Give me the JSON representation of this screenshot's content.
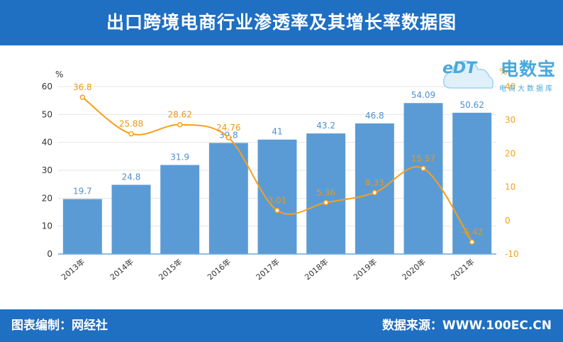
{
  "header": {
    "title": "出口跨境电商行业渗透率及其增长率数据图"
  },
  "footer": {
    "left": "图表编制：网经社",
    "right": "数据来源：WWW.100EC.CN"
  },
  "logo": {
    "mark": "eDT",
    "name": "电数宝",
    "tagline": "电商大数据库"
  },
  "colors": {
    "header_bg": "#1f6fc2",
    "bar": "#5b9bd5",
    "line": "#f5a01a",
    "bar_label": "#4f8fcf",
    "line_label": "#e8971b"
  },
  "chart_data": {
    "type": "bar",
    "categories": [
      "2013年",
      "2014年",
      "2015年",
      "2016年",
      "2017年",
      "2018年",
      "2019年",
      "2020年",
      "2021年"
    ],
    "series": [
      {
        "type": "bar",
        "axis": "left",
        "values": [
          19.7,
          24.8,
          31.9,
          39.8,
          41,
          43.2,
          46.8,
          54.09,
          50.62
        ],
        "labels": [
          "19.7",
          "24.8",
          "31.9",
          "39.8",
          "41",
          "43.2",
          "46.8",
          "54.09",
          "50.62"
        ]
      },
      {
        "type": "line",
        "axis": "right",
        "smooth": true,
        "values": [
          36.8,
          25.88,
          28.62,
          24.76,
          3.01,
          5.36,
          8.33,
          15.57,
          -6.42
        ],
        "labels": [
          "36.8",
          "25.88",
          "28.62",
          "24.76",
          "3.01",
          "5.36",
          "8.33",
          "15.57",
          "-6.42"
        ]
      }
    ],
    "left_axis": {
      "unit": "%",
      "ylim": [
        0,
        60
      ],
      "ticks": [
        "0",
        "10",
        "20",
        "30",
        "40",
        "50",
        "60"
      ]
    },
    "right_axis": {
      "unit": "%",
      "ylim": [
        -10,
        40
      ],
      "ticks": [
        "-10",
        "0",
        "10",
        "20",
        "30",
        "40"
      ]
    },
    "grid": true
  }
}
